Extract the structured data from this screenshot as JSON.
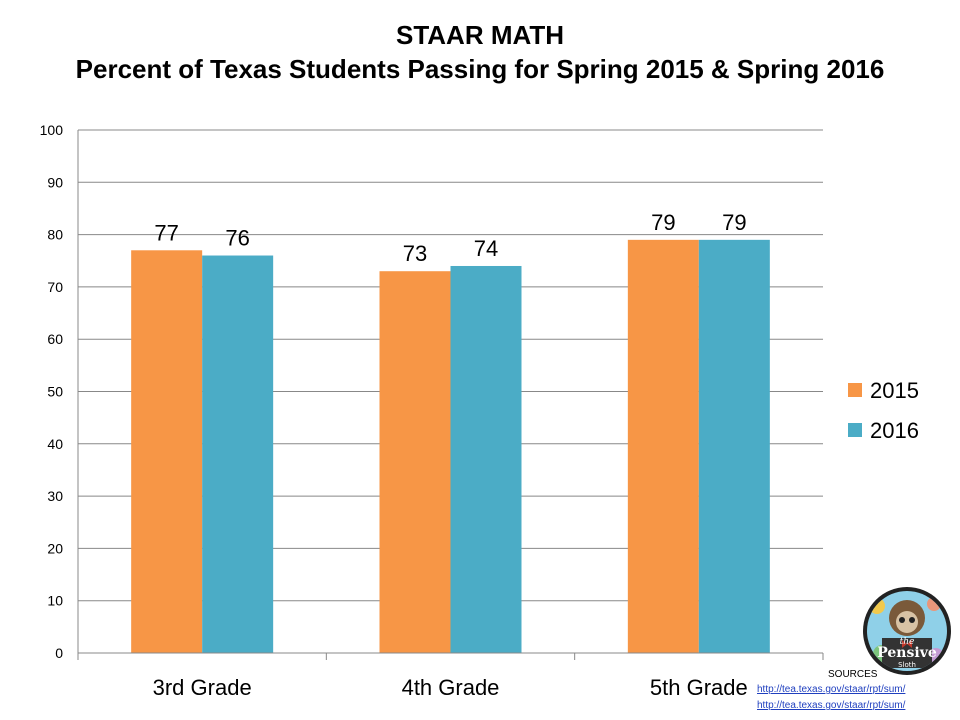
{
  "title_line1": "STAAR MATH",
  "title_line2": "Percent of Texas Students Passing for Spring 2015 & Spring 2016",
  "chart_data": {
    "type": "bar",
    "title": "STAAR MATH",
    "subtitle": "Percent of Texas Students Passing for Spring 2015 & Spring 2016",
    "categories": [
      "3rd Grade",
      "4th Grade",
      "5th Grade"
    ],
    "series": [
      {
        "name": "2015",
        "values": [
          77,
          73,
          79
        ],
        "color": "#F79646"
      },
      {
        "name": "2016",
        "values": [
          76,
          74,
          79
        ],
        "color": "#4BACC6"
      }
    ],
    "xlabel": "",
    "ylabel": "",
    "ylim": [
      0,
      100
    ],
    "yticks": [
      0,
      10,
      20,
      30,
      40,
      50,
      60,
      70,
      80,
      90,
      100
    ],
    "grid": true,
    "legend_position": "right",
    "data_labels": true
  },
  "sources": {
    "label": "SOURCES",
    "links": [
      "http://tea.texas.gov/staar/rpt/sum/",
      "http://tea.texas.gov/staar/rpt/sum/"
    ]
  },
  "logo": {
    "icon": "pensive-sloth-logo",
    "text_top": "the",
    "text_main": "Pensive",
    "text_bottom": "Sloth"
  }
}
